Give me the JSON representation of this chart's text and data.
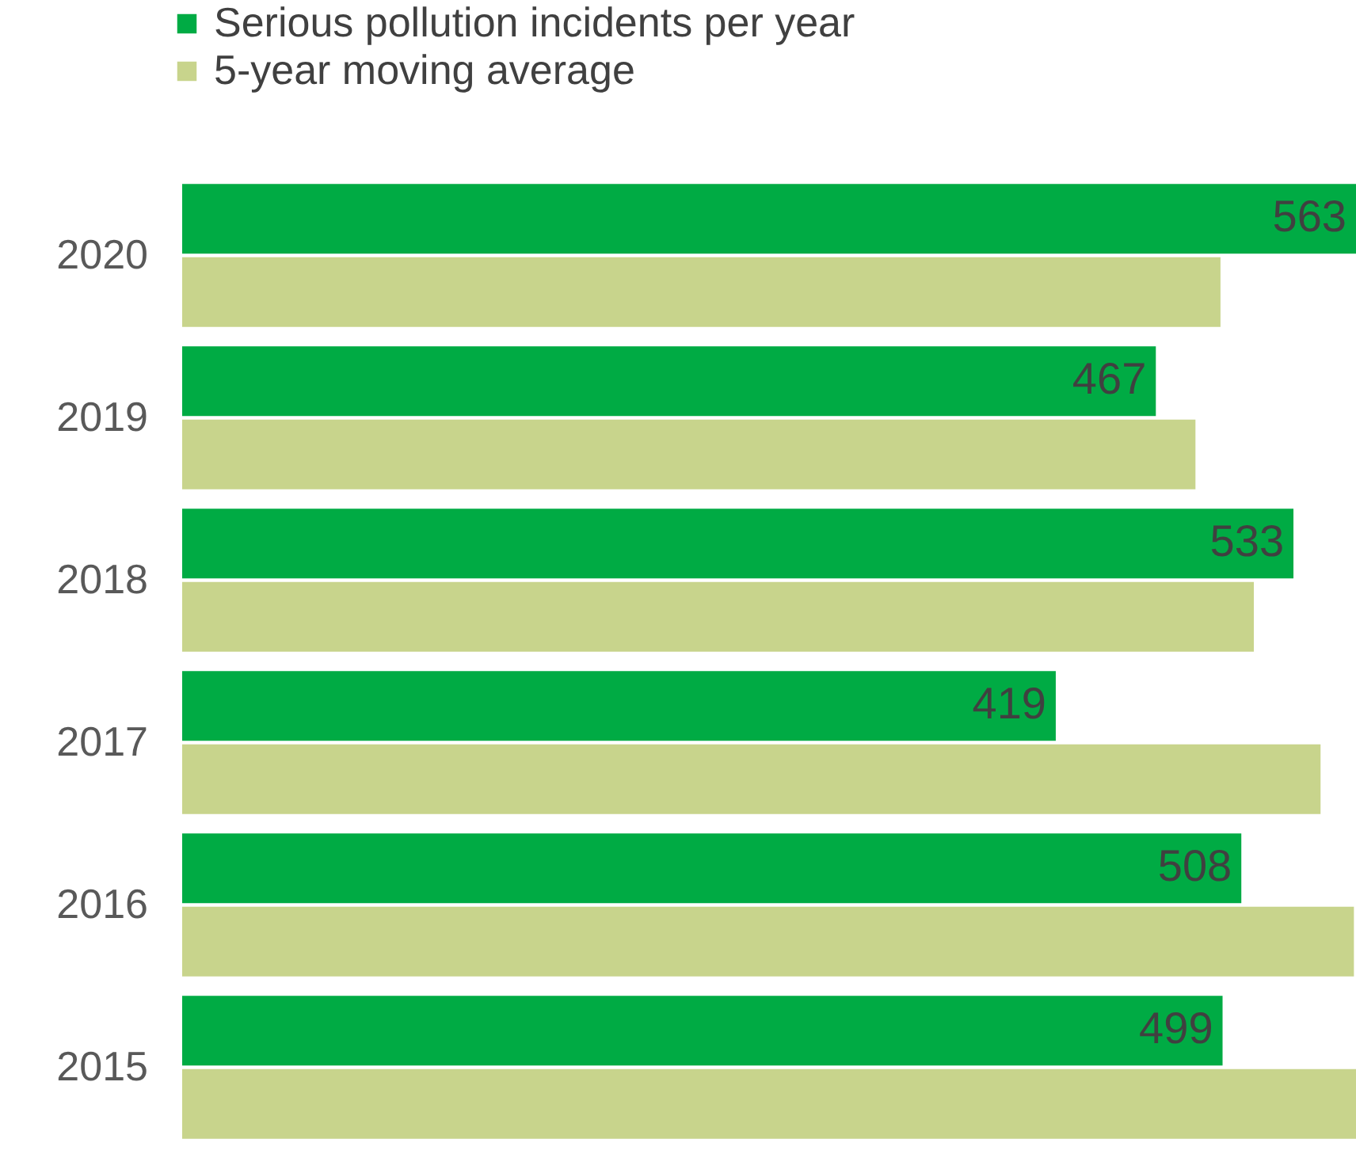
{
  "chart_data": {
    "type": "bar",
    "orientation": "horizontal",
    "categories": [
      "2020",
      "2019",
      "2018",
      "2017",
      "2016",
      "2015"
    ],
    "series": [
      {
        "name": "Serious pollution incidents per year",
        "color": "#00ab44",
        "values": [
          563,
          467,
          533,
          419,
          508,
          499
        ],
        "value_labels": [
          "563",
          "467",
          "533",
          "419",
          "508",
          "499"
        ]
      },
      {
        "name": "5-year moving average",
        "color": "#c8d48c",
        "values": [
          498,
          486,
          514,
          546,
          562,
          563
        ]
      }
    ],
    "xlim": [
      0,
      563
    ],
    "tick_labels": "y",
    "legend": "top left"
  }
}
